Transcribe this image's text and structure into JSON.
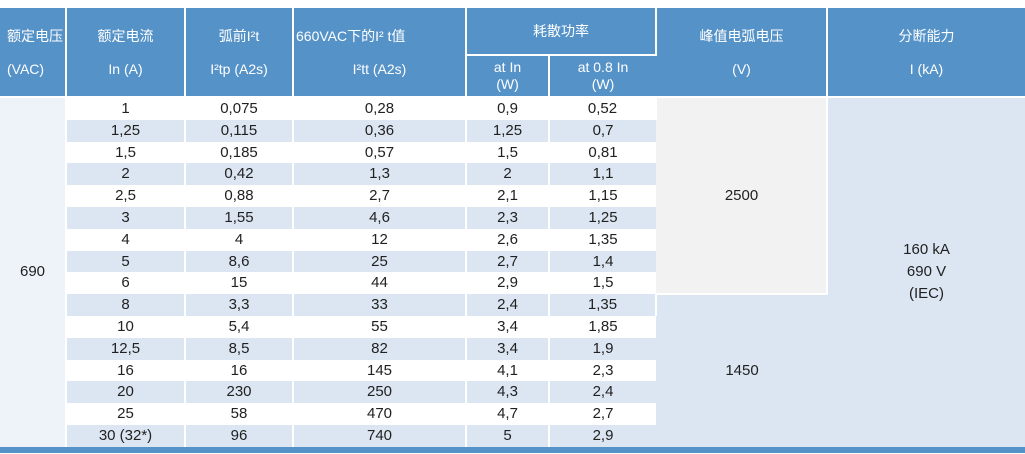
{
  "table": {
    "header": {
      "voltage": {
        "title": "额定电压",
        "unit": "(VAC)"
      },
      "current": {
        "title": "额定电流",
        "unit": "In (A)"
      },
      "prearc": {
        "title": "弧前I²t",
        "unit": "I²tp (A2s)"
      },
      "i2t660": {
        "title": "660VAC下的I² t值",
        "unit": "I²tt (A2s)"
      },
      "power_group": {
        "title": "耗散功率"
      },
      "power_at_in": {
        "line1": "at In",
        "line2": "(W)"
      },
      "power_at_08": {
        "line1": "at 0.8 In",
        "line2": "(W)"
      },
      "peak_arc": {
        "title": "峰值电弧电压",
        "unit": "(V)"
      },
      "breaking": {
        "title": "分断能力",
        "unit": "I (kA)"
      }
    },
    "merged": {
      "rated_voltage": "690",
      "peak_arc_group1": "2500",
      "peak_arc_group2": "1450",
      "breaking_capacity": [
        "160 kA",
        "690 V",
        "(IEC)"
      ],
      "group1_rowspan": 9,
      "group2_rowspan": 7
    },
    "rows": [
      {
        "in": "1",
        "i2tp": "0,075",
        "i2tt": "0,28",
        "p_in": "0,9",
        "p_08": "0,52"
      },
      {
        "in": "1,25",
        "i2tp": "0,115",
        "i2tt": "0,36",
        "p_in": "1,25",
        "p_08": "0,7"
      },
      {
        "in": "1,5",
        "i2tp": "0,185",
        "i2tt": "0,57",
        "p_in": "1,5",
        "p_08": "0,81"
      },
      {
        "in": "2",
        "i2tp": "0,42",
        "i2tt": "1,3",
        "p_in": "2",
        "p_08": "1,1"
      },
      {
        "in": "2,5",
        "i2tp": "0,88",
        "i2tt": "2,7",
        "p_in": "2,1",
        "p_08": "1,15"
      },
      {
        "in": "3",
        "i2tp": "1,55",
        "i2tt": "4,6",
        "p_in": "2,3",
        "p_08": "1,25"
      },
      {
        "in": "4",
        "i2tp": "4",
        "i2tt": "12",
        "p_in": "2,6",
        "p_08": "1,35"
      },
      {
        "in": "5",
        "i2tp": "8,6",
        "i2tt": "25",
        "p_in": "2,7",
        "p_08": "1,4"
      },
      {
        "in": "6",
        "i2tp": "15",
        "i2tt": "44",
        "p_in": "2,9",
        "p_08": "1,5"
      },
      {
        "in": "8",
        "i2tp": "3,3",
        "i2tt": "33",
        "p_in": "2,4",
        "p_08": "1,35"
      },
      {
        "in": "10",
        "i2tp": "5,4",
        "i2tt": "55",
        "p_in": "3,4",
        "p_08": "1,85"
      },
      {
        "in": "12,5",
        "i2tp": "8,5",
        "i2tt": "82",
        "p_in": "3,4",
        "p_08": "1,9"
      },
      {
        "in": "16",
        "i2tp": "16",
        "i2tt": "145",
        "p_in": "4,1",
        "p_08": "2,3"
      },
      {
        "in": "20",
        "i2tp": "230",
        "i2tt": "250",
        "p_in": "4,3",
        "p_08": "2,4"
      },
      {
        "in": "25",
        "i2tp": "58",
        "i2tt": "470",
        "p_in": "4,7",
        "p_08": "2,7"
      },
      {
        "in": "30 (32*)",
        "i2tp": "96",
        "i2tt": "740",
        "p_in": "5",
        "p_08": "2,9"
      }
    ]
  },
  "colors": {
    "header_blue": "#5592c8",
    "stripe_blue": "#dce6f2",
    "merged_gray": "#f2f2f2",
    "merged_light": "#eef3fa",
    "body_text": "#212121"
  }
}
